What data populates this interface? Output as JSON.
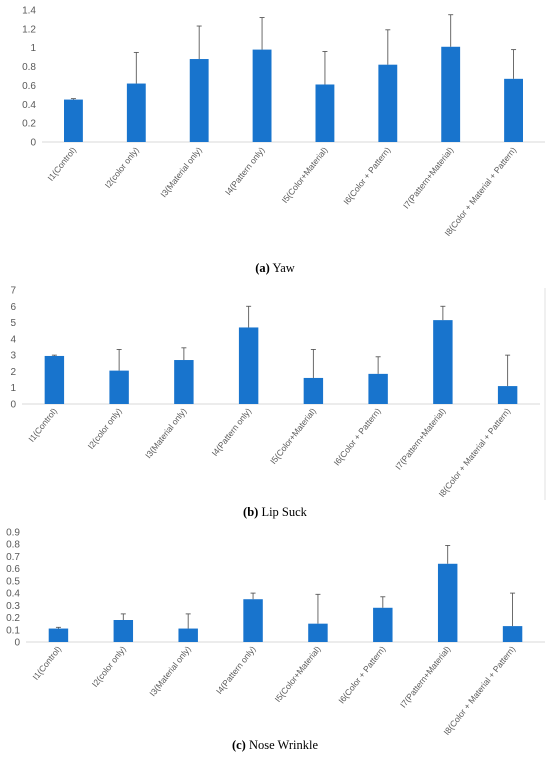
{
  "colors": {
    "bar": "#1874CD",
    "error": "#5a5a5a",
    "axis": "#d9d9d9"
  },
  "categories": [
    "I1(Control)",
    "I2(color only)",
    "I3(Material only)",
    "I4(Pattern only)",
    "I5(Color+Material)",
    "I6(Color + Pattern)",
    "I7(Pattern+Material)",
    "I8(Color + Material + Pattern)"
  ],
  "chart_data": [
    {
      "type": "bar",
      "caption_letter": "(a)",
      "caption_text": "Yaw",
      "categories": [
        "I1(Control)",
        "I2(color only)",
        "I3(Material only)",
        "I4(Pattern only)",
        "I5(Color+Material)",
        "I6(Color + Pattern)",
        "I7(Pattern+Material)",
        "I8(Color + Material + Pattern)"
      ],
      "values": [
        0.45,
        0.62,
        0.88,
        0.98,
        0.61,
        0.82,
        1.01,
        0.67
      ],
      "error_tops": [
        0.46,
        0.95,
        1.23,
        1.32,
        0.96,
        1.19,
        1.35,
        0.98
      ],
      "ylim": [
        0,
        1.4
      ],
      "yticks": [
        "0",
        "0.2",
        "0.4",
        "0.6",
        "0.8",
        "1",
        "1.2",
        "1.4"
      ],
      "ytick_values": [
        0,
        0.2,
        0.4,
        0.6,
        0.8,
        1,
        1.2,
        1.4
      ]
    },
    {
      "type": "bar",
      "caption_letter": "(b)",
      "caption_text": "Lip Suck",
      "categories": [
        "I1(Control)",
        "I2(color only)",
        "I3(Material only)",
        "I4(Pattern only)",
        "I5(Color+Material)",
        "I6(Color + Pattern)",
        "I7(Pattern+Material)",
        "I8(Color + Material + Pattern)"
      ],
      "values": [
        2.95,
        2.05,
        2.7,
        4.7,
        1.6,
        1.85,
        5.15,
        1.1
      ],
      "error_tops": [
        3.0,
        3.35,
        3.45,
        6.0,
        3.35,
        2.9,
        6.0,
        3.0
      ],
      "ylim": [
        0,
        7
      ],
      "yticks": [
        "0",
        "1",
        "2",
        "3",
        "4",
        "5",
        "6",
        "7"
      ],
      "ytick_values": [
        0,
        1,
        2,
        3,
        4,
        5,
        6,
        7
      ]
    },
    {
      "type": "bar",
      "caption_letter": "(c)",
      "caption_text": "Nose Wrinkle",
      "categories": [
        "I1(Control)",
        "I2(color only)",
        "I3(Material only)",
        "I4(Pattern only)",
        "I5(Color+Material)",
        "I6(Color + Pattern)",
        "I7(Pattern+Material)",
        "I8(Color + Material + Pattern)"
      ],
      "values": [
        0.11,
        0.18,
        0.11,
        0.35,
        0.15,
        0.28,
        0.64,
        0.13
      ],
      "error_tops": [
        0.12,
        0.23,
        0.23,
        0.4,
        0.39,
        0.37,
        0.79,
        0.4
      ],
      "ylim": [
        0,
        0.9
      ],
      "yticks": [
        "0",
        "0.1",
        "0.2",
        "0.3",
        "0.4",
        "0.5",
        "0.6",
        "0.7",
        "0.8",
        "0.9"
      ],
      "ytick_values": [
        0,
        0.1,
        0.2,
        0.3,
        0.4,
        0.5,
        0.6,
        0.7,
        0.8,
        0.9
      ]
    }
  ]
}
